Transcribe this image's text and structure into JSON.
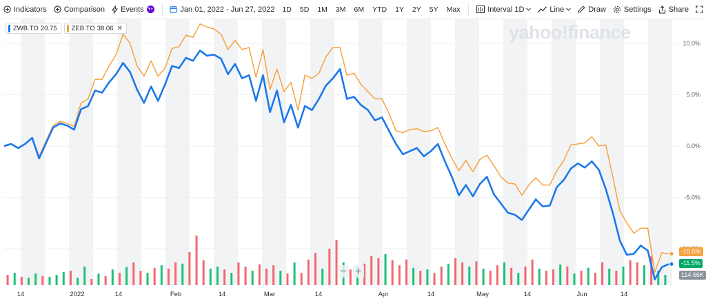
{
  "toolbar": {
    "indicators": "Indicators",
    "comparison": "Comparison",
    "events": "Events",
    "date_range": "Jan 01, 2022 - Jun 27, 2022",
    "ranges": [
      "1D",
      "5D",
      "1M",
      "3M",
      "6M",
      "YTD",
      "1Y",
      "2Y",
      "5Y",
      "Max"
    ],
    "interval_label": "Interval",
    "interval_value": "1D",
    "chart_type": "Line",
    "draw": "Draw",
    "settings": "Settings",
    "share": "Share"
  },
  "legend": [
    {
      "symbol": "ZWB.TO",
      "value": "20.75",
      "color": "#1a78ea"
    },
    {
      "symbol": "ZEB.TO",
      "value": "38.06",
      "color": "#f6a33f"
    }
  ],
  "watermark": "yahoo!finance",
  "tags": {
    "zeb_pct": "-10.5%",
    "zwb_pct": "-11.5%",
    "volume": "114.66K"
  },
  "colors": {
    "zwb": "#1a78ea",
    "zeb": "#f6a33f",
    "vol_up": "#1fbf7a",
    "vol_down": "#f0686e",
    "grid_band": "#f2f3f5"
  },
  "chart_data": {
    "type": "line",
    "title": "",
    "y_unit": "%",
    "ylim": [
      -14,
      12.5
    ],
    "y_ticks": [
      "10.0%",
      "5.0%",
      "0.0%",
      "-5.0%",
      "-10.0%"
    ],
    "x_labels": [
      "14",
      "2022",
      "14",
      "Feb",
      "14",
      "Mar",
      "14",
      "Apr",
      "14",
      "May",
      "14",
      "Jun",
      "14"
    ],
    "series": [
      {
        "name": "ZWB.TO",
        "color": "#1a78ea",
        "values": [
          0,
          0.2,
          -0.2,
          0.2,
          0.8,
          -1.2,
          0.3,
          1.8,
          2.2,
          2.0,
          1.6,
          3.6,
          3.9,
          5.4,
          5.2,
          6.2,
          7.0,
          8.1,
          7.2,
          5.5,
          4.2,
          5.8,
          4.4,
          6.0,
          7.8,
          7.6,
          8.6,
          8.3,
          9.3,
          8.8,
          8.9,
          8.5,
          7.0,
          8.0,
          6.6,
          6.9,
          4.4,
          6.9,
          3.3,
          5.4,
          2.3,
          4.0,
          1.8,
          3.9,
          3.5,
          4.6,
          5.9,
          6.6,
          7.5,
          4.6,
          4.8,
          4.0,
          3.5,
          2.5,
          2.8,
          1.5,
          0.2,
          -0.8,
          -0.5,
          -0.2,
          -1.0,
          -0.5,
          0.2,
          -1.5,
          -3.0,
          -4.8,
          -3.8,
          -4.9,
          -3.7,
          -3.0,
          -4.7,
          -5.6,
          -6.5,
          -6.7,
          -7.2,
          -6.2,
          -5.2,
          -5.9,
          -5.8,
          -4.0,
          -3.3,
          -2.2,
          -1.7,
          -2.1,
          -1.5,
          -2.3,
          -4.2,
          -6.5,
          -9.2,
          -10.6,
          -10.5,
          -9.7,
          -10.2,
          -13.0,
          -11.8,
          -11.5
        ]
      },
      {
        "name": "ZEB.TO",
        "color": "#f6a33f",
        "values": [
          0,
          0.2,
          -0.2,
          0.2,
          0.8,
          -1.0,
          0.5,
          2.0,
          2.4,
          2.2,
          1.9,
          4.2,
          4.6,
          6.5,
          6.5,
          7.8,
          8.9,
          10.9,
          10.0,
          7.8,
          6.8,
          8.3,
          6.8,
          7.6,
          9.5,
          9.7,
          10.8,
          10.6,
          11.9,
          11.6,
          11.4,
          10.9,
          9.4,
          10.3,
          9.4,
          9.6,
          6.7,
          9.4,
          5.5,
          7.5,
          5.3,
          6.2,
          3.5,
          6.9,
          6.6,
          7.1,
          8.7,
          9.6,
          9.6,
          6.9,
          7.1,
          6.0,
          5.3,
          4.6,
          4.6,
          3.2,
          1.5,
          1.3,
          1.6,
          1.7,
          1.4,
          1.5,
          1.8,
          0.2,
          -1.2,
          -2.4,
          -1.4,
          -2.5,
          -1.3,
          -0.9,
          -1.9,
          -3.0,
          -3.6,
          -3.7,
          -4.8,
          -3.8,
          -3.1,
          -3.8,
          -3.8,
          -2.4,
          -1.4,
          0.1,
          0.2,
          0.3,
          0.9,
          0.0,
          0.1,
          -3.0,
          -6.3,
          -7.5,
          -8.5,
          -8.0,
          -8.0,
          -12.3,
          -10.4,
          -10.5
        ]
      }
    ],
    "volume": {
      "unit": "K",
      "last": 114.66,
      "bars": [
        {
          "v": 25,
          "up": false
        },
        {
          "v": 30,
          "up": true
        },
        {
          "v": 20,
          "up": false
        },
        {
          "v": 18,
          "up": true
        },
        {
          "v": 28,
          "up": true
        },
        {
          "v": 22,
          "up": false
        },
        {
          "v": 20,
          "up": true
        },
        {
          "v": 25,
          "up": true
        },
        {
          "v": 32,
          "up": true
        },
        {
          "v": 35,
          "up": false
        },
        {
          "v": 18,
          "up": true
        },
        {
          "v": 45,
          "up": true
        },
        {
          "v": 15,
          "up": false
        },
        {
          "v": 28,
          "up": true
        },
        {
          "v": 22,
          "up": false
        },
        {
          "v": 38,
          "up": true
        },
        {
          "v": 30,
          "up": false
        },
        {
          "v": 44,
          "up": true
        },
        {
          "v": 55,
          "up": false
        },
        {
          "v": 35,
          "up": false
        },
        {
          "v": 30,
          "up": true
        },
        {
          "v": 42,
          "up": false
        },
        {
          "v": 48,
          "up": true
        },
        {
          "v": 40,
          "up": false
        },
        {
          "v": 55,
          "up": false
        },
        {
          "v": 52,
          "up": true
        },
        {
          "v": 80,
          "up": false
        },
        {
          "v": 120,
          "up": false
        },
        {
          "v": 60,
          "up": false
        },
        {
          "v": 40,
          "up": true
        },
        {
          "v": 45,
          "up": true
        },
        {
          "v": 38,
          "up": false
        },
        {
          "v": 30,
          "up": true
        },
        {
          "v": 55,
          "up": false
        },
        {
          "v": 45,
          "up": false
        },
        {
          "v": 35,
          "up": true
        },
        {
          "v": 50,
          "up": false
        },
        {
          "v": 40,
          "up": false
        },
        {
          "v": 48,
          "up": false
        },
        {
          "v": 35,
          "up": true
        },
        {
          "v": 28,
          "up": false
        },
        {
          "v": 55,
          "up": true
        },
        {
          "v": 30,
          "up": false
        },
        {
          "v": 62,
          "up": false
        },
        {
          "v": 78,
          "up": false
        },
        {
          "v": 40,
          "up": true
        },
        {
          "v": 88,
          "up": false
        },
        {
          "v": 110,
          "up": false
        },
        {
          "v": 55,
          "up": true
        },
        {
          "v": 38,
          "up": false
        },
        {
          "v": 45,
          "up": true
        },
        {
          "v": 52,
          "up": false
        },
        {
          "v": 70,
          "up": false
        },
        {
          "v": 65,
          "up": false
        },
        {
          "v": 75,
          "up": true
        },
        {
          "v": 60,
          "up": false
        },
        {
          "v": 48,
          "up": false
        },
        {
          "v": 62,
          "up": false
        },
        {
          "v": 42,
          "up": true
        },
        {
          "v": 35,
          "up": false
        },
        {
          "v": 38,
          "up": true
        },
        {
          "v": 30,
          "up": false
        },
        {
          "v": 45,
          "up": false
        },
        {
          "v": 52,
          "up": true
        },
        {
          "v": 65,
          "up": false
        },
        {
          "v": 55,
          "up": false
        },
        {
          "v": 45,
          "up": true
        },
        {
          "v": 58,
          "up": false
        },
        {
          "v": 40,
          "up": true
        },
        {
          "v": 35,
          "up": false
        },
        {
          "v": 48,
          "up": false
        },
        {
          "v": 55,
          "up": true
        },
        {
          "v": 42,
          "up": false
        },
        {
          "v": 30,
          "up": true
        },
        {
          "v": 45,
          "up": false
        },
        {
          "v": 62,
          "up": false
        },
        {
          "v": 40,
          "up": true
        },
        {
          "v": 35,
          "up": false
        },
        {
          "v": 38,
          "up": false
        },
        {
          "v": 50,
          "up": true
        },
        {
          "v": 45,
          "up": false
        },
        {
          "v": 28,
          "up": true
        },
        {
          "v": 35,
          "up": false
        },
        {
          "v": 42,
          "up": true
        },
        {
          "v": 30,
          "up": false
        },
        {
          "v": 55,
          "up": false
        },
        {
          "v": 40,
          "up": true
        },
        {
          "v": 35,
          "up": false
        },
        {
          "v": 45,
          "up": true
        },
        {
          "v": 60,
          "up": false
        },
        {
          "v": 55,
          "up": false
        },
        {
          "v": 48,
          "up": true
        },
        {
          "v": 70,
          "up": false
        },
        {
          "v": 35,
          "up": true
        },
        {
          "v": 25,
          "up": true
        }
      ]
    }
  }
}
